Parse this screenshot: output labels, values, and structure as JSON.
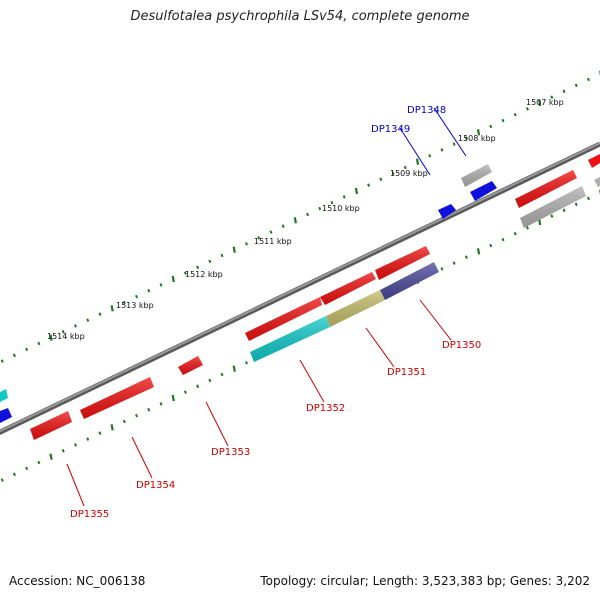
{
  "title": "Desulfotalea psychrophila LSv54, complete genome",
  "accession_text": "Accession: NC_006138",
  "summary_text": "Topology: circular; Length: 3,523,383 bp; Genes: 3,202",
  "colors": {
    "backbone": "#7a7a7a",
    "tick": "#1e7a1e",
    "forward_gene_label": "#0000cc",
    "reverse_gene_label": "#cc0000",
    "red_gene": "#ee1111",
    "grey_gene": "#b0b0b0",
    "blue_gene": "#1010dd",
    "cyan_gene": "#11c8c8",
    "olive_gene": "#c4bc6a",
    "navy_gene": "#4a4a9a"
  },
  "scale_labels": [
    "1507 kbp",
    "1508 kbp",
    "1509 kbp",
    "1510 kbp",
    "1511 kbp",
    "1512 kbp",
    "1513 kbp",
    "1514 kbp"
  ],
  "gene_labels": {
    "forward": [
      "DP1348",
      "DP1349"
    ],
    "reverse": [
      "DP1350",
      "DP1351",
      "DP1352",
      "DP1353",
      "DP1354",
      "DP1355"
    ]
  }
}
